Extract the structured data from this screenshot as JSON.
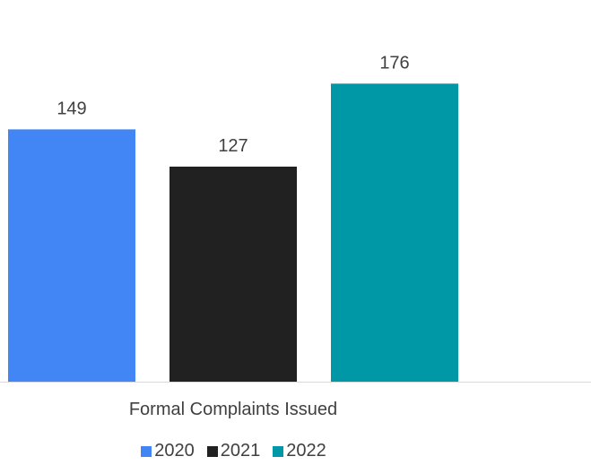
{
  "chart_data": {
    "type": "bar",
    "categories": [
      "Formal Complaints Issued"
    ],
    "series": [
      {
        "name": "2020",
        "values": [
          149
        ],
        "color": "#4285f4"
      },
      {
        "name": "2021",
        "values": [
          127
        ],
        "color": "#212121"
      },
      {
        "name": "2022",
        "values": [
          176
        ],
        "color": "#0097a7"
      }
    ],
    "ylim": [
      0,
      200
    ],
    "grid": false,
    "legend_position": "bottom"
  }
}
